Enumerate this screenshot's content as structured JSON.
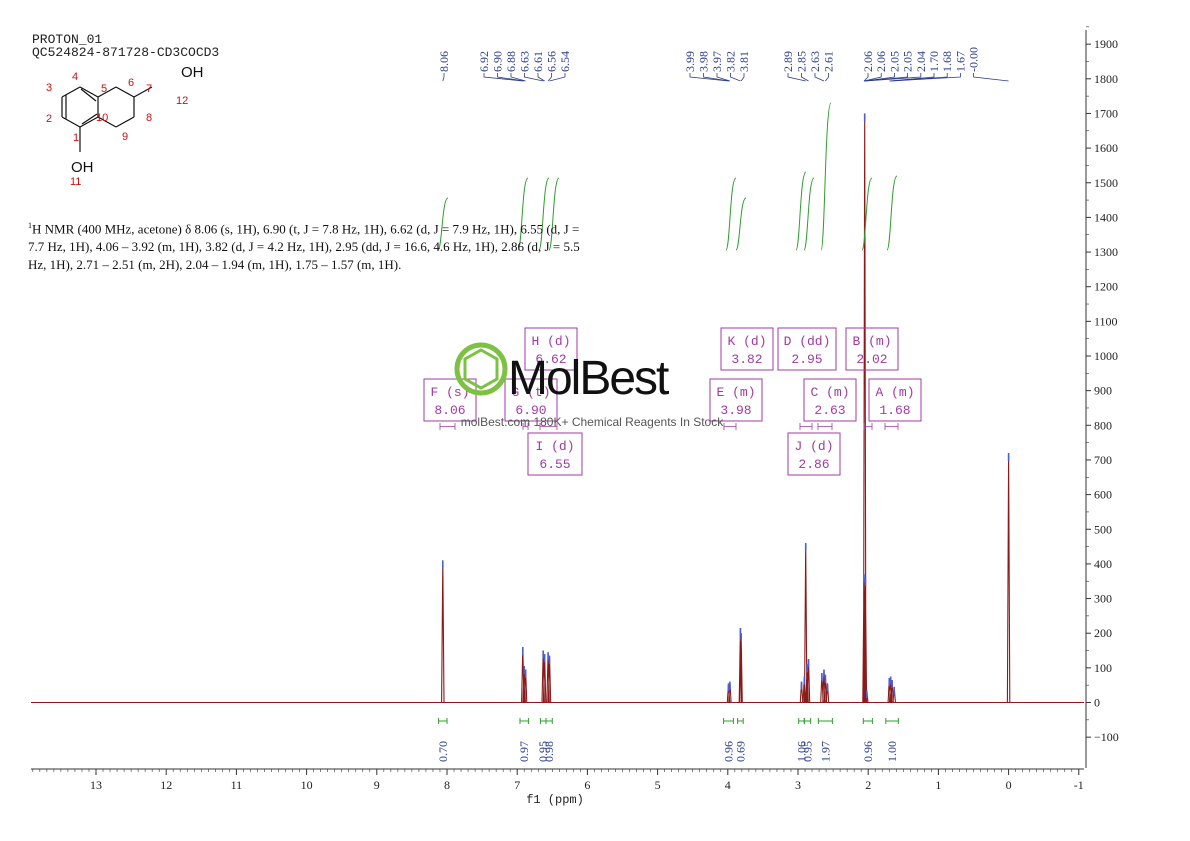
{
  "header": {
    "title": "PROTON_01",
    "sample": "QC524824-871728-CD3COCD3"
  },
  "structure": {
    "atoms": [
      "1",
      "2",
      "3",
      "4",
      "5",
      "6",
      "7",
      "8",
      "9",
      "10",
      "11",
      "12"
    ],
    "groups": [
      "OH",
      "OH"
    ]
  },
  "nmr_description": {
    "prefix": "1",
    "text": "H NMR (400 MHz, acetone) δ 8.06 (s, 1H), 6.90 (t, J = 7.8 Hz, 1H), 6.62 (d, J = 7.9 Hz, 1H), 6.55 (d, J = 7.7 Hz, 1H), 4.06 – 3.92 (m, 1H), 3.82 (d, J = 4.2 Hz, 1H), 2.95 (dd, J = 16.6, 4.6 Hz, 1H), 2.86 (d, J = 5.5 Hz, 1H), 2.71 – 2.51 (m, 2H), 2.04 – 1.94 (m, 1H), 1.75 – 1.57 (m, 1H)."
  },
  "watermark": {
    "logo_text": "MolBest",
    "tagline": "molBest.com 180K+ Chemical Reagents In Stock"
  },
  "chart_data": {
    "type": "line",
    "xlabel": "f1 (ppm)",
    "xlim": [
      14,
      -1
    ],
    "x_reversed": true,
    "x_ticks": [
      "13",
      "12",
      "11",
      "10",
      "9",
      "8",
      "7",
      "6",
      "5",
      "4",
      "3",
      "2",
      "1",
      "0",
      "-1"
    ],
    "ylim": [
      -150,
      1950
    ],
    "y_ticks": [
      "-100",
      "0",
      "100",
      "200",
      "300",
      "400",
      "500",
      "600",
      "700",
      "800",
      "900",
      "1000",
      "1100",
      "1200",
      "1300",
      "1400",
      "1500",
      "1600",
      "1700",
      "1800",
      "1900"
    ],
    "line_color": "#8b1a1a",
    "peaks": [
      {
        "ppm": 8.06,
        "height": 410
      },
      {
        "ppm": 6.92,
        "height": 160
      },
      {
        "ppm": 6.9,
        "height": 105
      },
      {
        "ppm": 6.88,
        "height": 95
      },
      {
        "ppm": 6.63,
        "height": 150
      },
      {
        "ppm": 6.61,
        "height": 140
      },
      {
        "ppm": 6.56,
        "height": 145
      },
      {
        "ppm": 6.54,
        "height": 135
      },
      {
        "ppm": 3.99,
        "height": 55
      },
      {
        "ppm": 3.97,
        "height": 60
      },
      {
        "ppm": 3.82,
        "height": 215
      },
      {
        "ppm": 3.81,
        "height": 200
      },
      {
        "ppm": 2.95,
        "height": 60
      },
      {
        "ppm": 2.91,
        "height": 75
      },
      {
        "ppm": 2.89,
        "height": 460
      },
      {
        "ppm": 2.87,
        "height": 110
      },
      {
        "ppm": 2.85,
        "height": 125
      },
      {
        "ppm": 2.66,
        "height": 85
      },
      {
        "ppm": 2.63,
        "height": 95
      },
      {
        "ppm": 2.61,
        "height": 80
      },
      {
        "ppm": 2.58,
        "height": 55
      },
      {
        "ppm": 2.06,
        "height": 370
      },
      {
        "ppm": 2.05,
        "height": 1700
      },
      {
        "ppm": 2.04,
        "height": 360
      },
      {
        "ppm": 2.02,
        "height": 35
      },
      {
        "ppm": 1.7,
        "height": 70
      },
      {
        "ppm": 1.68,
        "height": 75
      },
      {
        "ppm": 1.66,
        "height": 65
      },
      {
        "ppm": 1.63,
        "height": 45
      },
      {
        "ppm": 0.0,
        "height": 720
      }
    ],
    "peak_labels": {
      "group1": {
        "ppms": [
          8.06
        ],
        "labels": [
          "8.06"
        ]
      },
      "group2": {
        "ppms": [
          6.92,
          6.9,
          6.88,
          6.63,
          6.61,
          6.56,
          6.54
        ],
        "labels": [
          "6.92",
          "6.90",
          "6.88",
          "6.63",
          "6.61",
          "6.56",
          "6.54"
        ]
      },
      "group3": {
        "ppms": [
          3.99,
          3.98,
          3.97,
          3.82,
          3.81
        ],
        "labels": [
          "3.99",
          "3.98",
          "3.97",
          "3.82",
          "3.81"
        ]
      },
      "group4": {
        "ppms": [
          2.89,
          2.85,
          2.63,
          2.61
        ],
        "labels": [
          "2.89",
          "2.85",
          "2.63",
          "2.61"
        ]
      },
      "group5": {
        "ppms": [
          2.06,
          2.06,
          2.05,
          2.05,
          2.04,
          1.7,
          1.68,
          1.67,
          0.0
        ],
        "labels": [
          "2.06",
          "2.06",
          "2.05",
          "2.05",
          "2.04",
          "1.70",
          "1.68",
          "1.67",
          "-0.00"
        ]
      }
    },
    "integrals": [
      {
        "from": 8.12,
        "to": 8.0,
        "value": "0.70"
      },
      {
        "from": 6.96,
        "to": 6.84,
        "value": "0.97"
      },
      {
        "from": 6.67,
        "to": 6.59,
        "value": "0.95"
      },
      {
        "from": 6.59,
        "to": 6.5,
        "value": "0.98"
      },
      {
        "from": 4.06,
        "to": 3.92,
        "value": "0.96"
      },
      {
        "from": 3.86,
        "to": 3.78,
        "value": "0.69"
      },
      {
        "from": 2.99,
        "to": 2.91,
        "value": "1.06"
      },
      {
        "from": 2.91,
        "to": 2.82,
        "value": "0.95"
      },
      {
        "from": 2.71,
        "to": 2.51,
        "value": "1.97"
      },
      {
        "from": 2.07,
        "to": 1.94,
        "value": "0.96"
      },
      {
        "from": 1.75,
        "to": 1.57,
        "value": "1.00"
      }
    ],
    "multiplets": [
      {
        "id": "F",
        "mult": "s",
        "shift": "8.06"
      },
      {
        "id": "G",
        "mult": "t",
        "shift": "6.90"
      },
      {
        "id": "H",
        "mult": "d",
        "shift": "6.62"
      },
      {
        "id": "I",
        "mult": "d",
        "shift": "6.55"
      },
      {
        "id": "E",
        "mult": "m",
        "shift": "3.98"
      },
      {
        "id": "K",
        "mult": "d",
        "shift": "3.82"
      },
      {
        "id": "D",
        "mult": "dd",
        "shift": "2.95"
      },
      {
        "id": "C",
        "mult": "m",
        "shift": "2.63"
      },
      {
        "id": "J",
        "mult": "d",
        "shift": "2.86"
      },
      {
        "id": "B",
        "mult": "m",
        "shift": "2.02"
      },
      {
        "id": "A",
        "mult": "m",
        "shift": "1.68"
      }
    ]
  }
}
